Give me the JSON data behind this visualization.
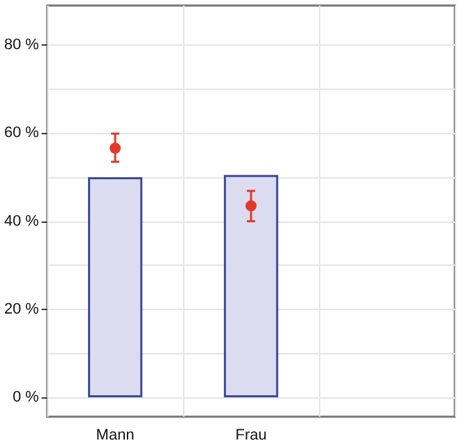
{
  "chart_data": {
    "type": "bar",
    "categories": [
      "Mann",
      "Frau",
      null
    ],
    "series": [
      {
        "color": "#dcdcf0",
        "values": [
          50,
          50.5,
          null
        ]
      },
      {
        "type": "scatter",
        "color": "#e0392b",
        "x": [
          "Mann",
          "Frau"
        ],
        "values": [
          56.6,
          43.5
        ],
        "errors": [
          [
            53.5,
            59.9
          ],
          [
            40,
            46.9
          ]
        ]
      }
    ],
    "ylim": [
      -4.4,
      89
    ],
    "yticks": [
      {
        "value": 0,
        "label": "0 %"
      },
      {
        "value": 10,
        "label": null
      },
      {
        "value": 20,
        "label": "20 %"
      },
      {
        "value": 30,
        "label": null
      },
      {
        "value": 40,
        "label": "40 %"
      },
      {
        "value": 50,
        "label": null
      },
      {
        "value": 60,
        "label": "60 %"
      },
      {
        "value": 70,
        "label": null
      },
      {
        "value": 80,
        "label": "80 %"
      }
    ],
    "grid": true,
    "marker": "circle"
  }
}
